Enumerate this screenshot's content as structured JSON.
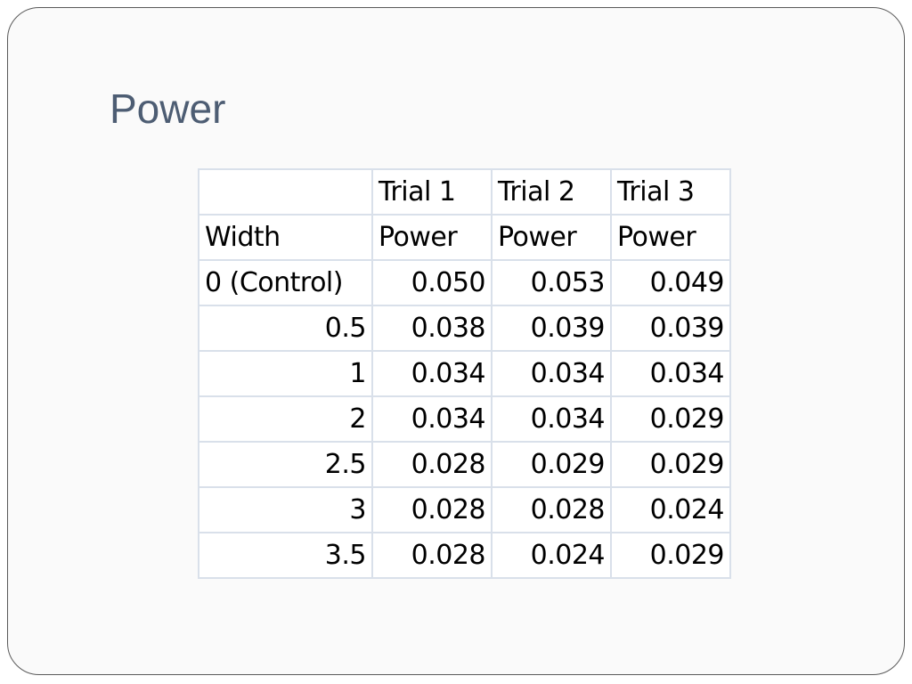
{
  "slide": {
    "title": "Power"
  },
  "table": {
    "header_row_1": [
      "",
      "Trial 1",
      "Trial 2",
      "Trial 3"
    ],
    "header_row_2": [
      "Width",
      "Power",
      "Power",
      "Power"
    ],
    "rows": [
      [
        "0 (Control)",
        "0.050",
        "0.053",
        "0.049"
      ],
      [
        "0.5",
        "0.038",
        "0.039",
        "0.039"
      ],
      [
        "1",
        "0.034",
        "0.034",
        "0.034"
      ],
      [
        "2",
        "0.034",
        "0.034",
        "0.029"
      ],
      [
        "2.5",
        "0.028",
        "0.029",
        "0.029"
      ],
      [
        "3",
        "0.028",
        "0.028",
        "0.024"
      ],
      [
        "3.5",
        "0.028",
        "0.024",
        "0.029"
      ]
    ]
  },
  "colors": {
    "title": "#4d5d73",
    "grid_border": "#d9e0ea",
    "slide_border": "#5a5a5a"
  }
}
